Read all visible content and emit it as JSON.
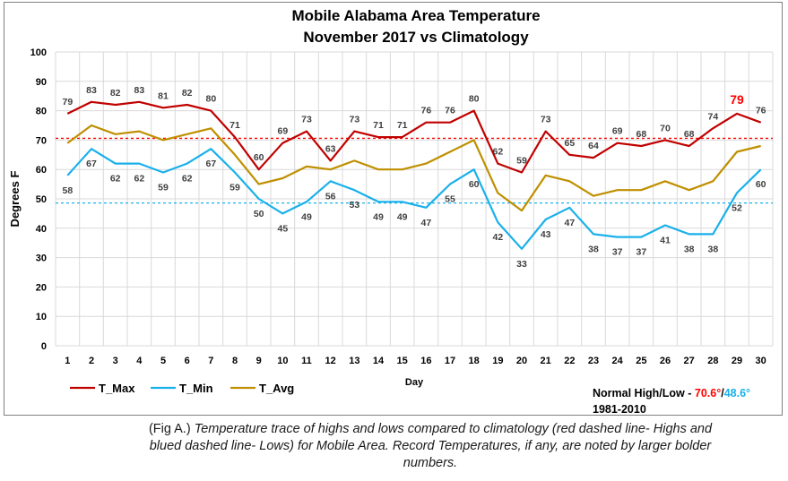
{
  "chart_data": {
    "type": "line",
    "title": [
      "Mobile Alabama Area Temperature",
      "November 2017 vs Climatology"
    ],
    "xlabel": "Day",
    "ylabel": "Degrees F",
    "x": [
      1,
      2,
      3,
      4,
      5,
      6,
      7,
      8,
      9,
      10,
      11,
      12,
      13,
      14,
      15,
      16,
      17,
      18,
      19,
      20,
      21,
      22,
      23,
      24,
      25,
      26,
      27,
      28,
      29,
      30
    ],
    "ylim": [
      0,
      100
    ],
    "yticks": [
      0,
      10,
      20,
      30,
      40,
      50,
      60,
      70,
      80,
      90,
      100
    ],
    "grid": true,
    "legend_position": "bottom-left",
    "series": [
      {
        "name": "T_Max",
        "color": "#c00000",
        "values": [
          79,
          83,
          82,
          83,
          81,
          82,
          80,
          71,
          60,
          69,
          73,
          63,
          73,
          71,
          71,
          76,
          76,
          80,
          62,
          59,
          73,
          65,
          64,
          69,
          68,
          70,
          68,
          74,
          79,
          76
        ]
      },
      {
        "name": "T_Min",
        "color": "#1ab0ea",
        "values": [
          58,
          67,
          62,
          62,
          59,
          62,
          67,
          59,
          50,
          45,
          49,
          56,
          53,
          49,
          49,
          47,
          55,
          60,
          42,
          33,
          43,
          47,
          38,
          37,
          37,
          41,
          38,
          38,
          52,
          60
        ]
      },
      {
        "name": "T_Avg",
        "color": "#bf8f00",
        "values": [
          69,
          75,
          72,
          73,
          70,
          72,
          74,
          65,
          55,
          57,
          61,
          60,
          63,
          60,
          60,
          62,
          66,
          70,
          52,
          46,
          58,
          56,
          51,
          53,
          53,
          56,
          53,
          56,
          66,
          68
        ]
      }
    ],
    "record_labels": [
      {
        "series": "T_Max",
        "x": 29,
        "value": 79,
        "color": "#ff0000"
      }
    ],
    "normal_high": 70.6,
    "normal_low": 48.6,
    "normal_high_color": "#ff0000",
    "normal_low_color": "#1ab0ea",
    "normals_text": {
      "label": "Normal High/Low - ",
      "high": "70.6°",
      "separator": "/",
      "low": "48.6°",
      "period": "1981-2010"
    }
  },
  "caption": {
    "prefix": "(Fig A.) ",
    "text": "Temperature trace of highs and lows compared to climatology (red dashed line- Highs and blued dashed line- Lows) for Mobile Area. Record Temperatures, if any, are noted by larger bolder numbers."
  }
}
